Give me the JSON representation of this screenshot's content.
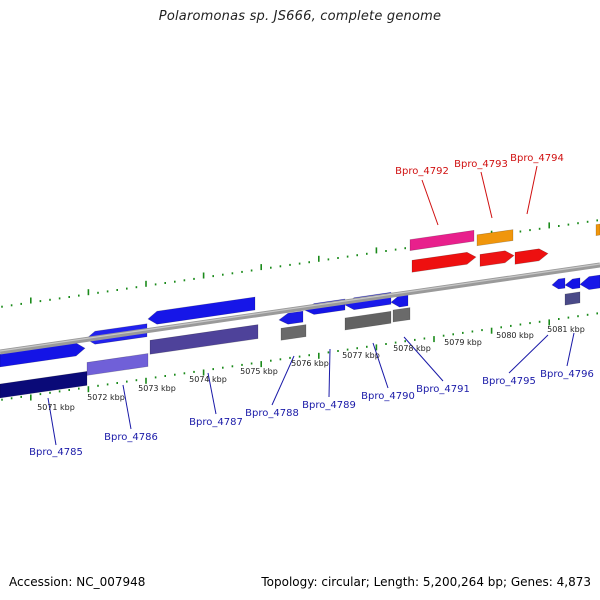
{
  "title": "Polaromonas sp. JS666, complete genome",
  "footer": {
    "accession": "Accession: NC_007948",
    "stats": "Topology: circular; Length: 5,200,264 bp; Genes: 4,873"
  },
  "colors": {
    "backbone": "#9a9a9a",
    "tick": "#1a8a1a",
    "label_blue": "#1a1aa8",
    "label_red": "#d01010"
  },
  "scale_labels": [
    "5071 kbp",
    "5072 kbp",
    "5073 kbp",
    "5074 kbp",
    "5075 kbp",
    "5076 kbp",
    "5077 kbp",
    "5078 kbp",
    "5079 kbp",
    "5080 kbp",
    "5081 kbp"
  ],
  "gene_labels_blue": [
    "Bpro_4785",
    "Bpro_4786",
    "Bpro_4787",
    "Bpro_4788",
    "Bpro_4789",
    "Bpro_4790",
    "Bpro_4791",
    "Bpro_4795",
    "Bpro_4796"
  ],
  "gene_labels_red": [
    "Bpro_4792",
    "Bpro_4793",
    "Bpro_4794"
  ]
}
